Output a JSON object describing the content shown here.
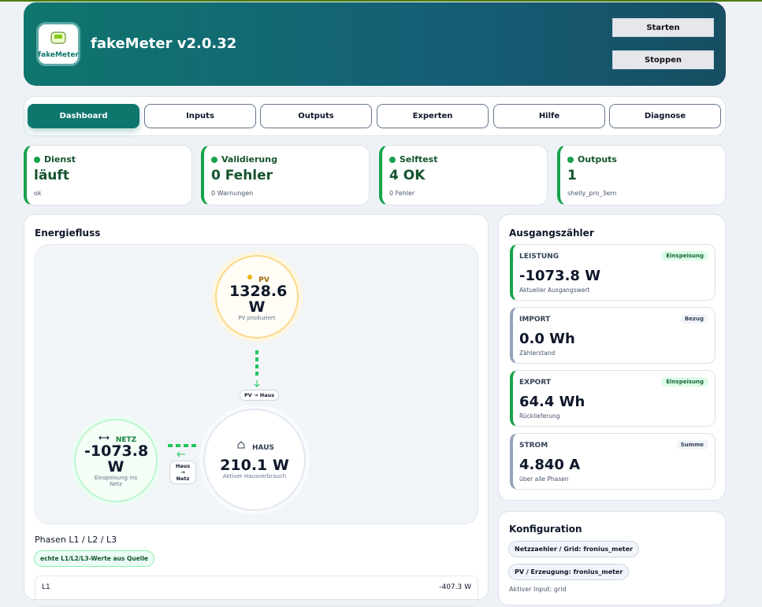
{
  "header": {
    "logo_text": "fakeMeter",
    "title": "fakeMeter v2.0.32",
    "buttons": [
      "Starten",
      "Stoppen"
    ]
  },
  "tabs": [
    "Dashboard",
    "Inputs",
    "Outputs",
    "Experten",
    "Hilfe",
    "Diagnose"
  ],
  "status_cards": [
    {
      "label": "Dienst",
      "value": "läuft",
      "note": "ok"
    },
    {
      "label": "Validierung",
      "value": "0 Fehler",
      "note": "0 Warnungen"
    },
    {
      "label": "Selftest",
      "value": "4 OK",
      "note": "0 Fehler"
    },
    {
      "label": "Outputs",
      "value": "1",
      "note": "shelly_pro_3em"
    }
  ],
  "energy": {
    "title": "Energiefluss",
    "pv": {
      "label": "PV",
      "value": "1328.6 W",
      "caption": "PV produziert"
    },
    "pv_flow": "PV → Haus",
    "haus": {
      "label": "HAUS",
      "value": "210.1 W",
      "caption": "Aktiver Hausverbrauch"
    },
    "netz": {
      "label": "NETZ",
      "value": "-1073.8 W",
      "caption": "Einspeisung ins Netz"
    },
    "netz_flow": "Haus → Netz"
  },
  "phases": {
    "title": "Phasen L1 / L2 / L3",
    "badge": "echte L1/L2/L3-Werte aus Quelle",
    "rows": [
      [
        "L1",
        "-407.3 W"
      ]
    ]
  },
  "meter": {
    "title": "Ausgangszähler",
    "items": [
      {
        "label": "LEISTUNG",
        "badge": "Einspeisung",
        "value": "-1073.8 W",
        "caption": "Aktueller Ausgangswert"
      },
      {
        "label": "IMPORT",
        "badge": "Bezug",
        "value": "0.0 Wh",
        "caption": "Zählerstand"
      },
      {
        "label": "EXPORT",
        "badge": "Einspeisung",
        "value": "64.4 Wh",
        "caption": "Rücklieferung"
      },
      {
        "label": "STROM",
        "badge": "Summe",
        "value": "4.840 A",
        "caption": "über alle Phasen"
      }
    ]
  },
  "config": {
    "title": "Konfiguration",
    "chips": [
      "Netzzaehler / Grid: fronius_meter",
      "PV / Erzeugung: fronius_meter"
    ],
    "note": "Aktiver Input: grid"
  }
}
